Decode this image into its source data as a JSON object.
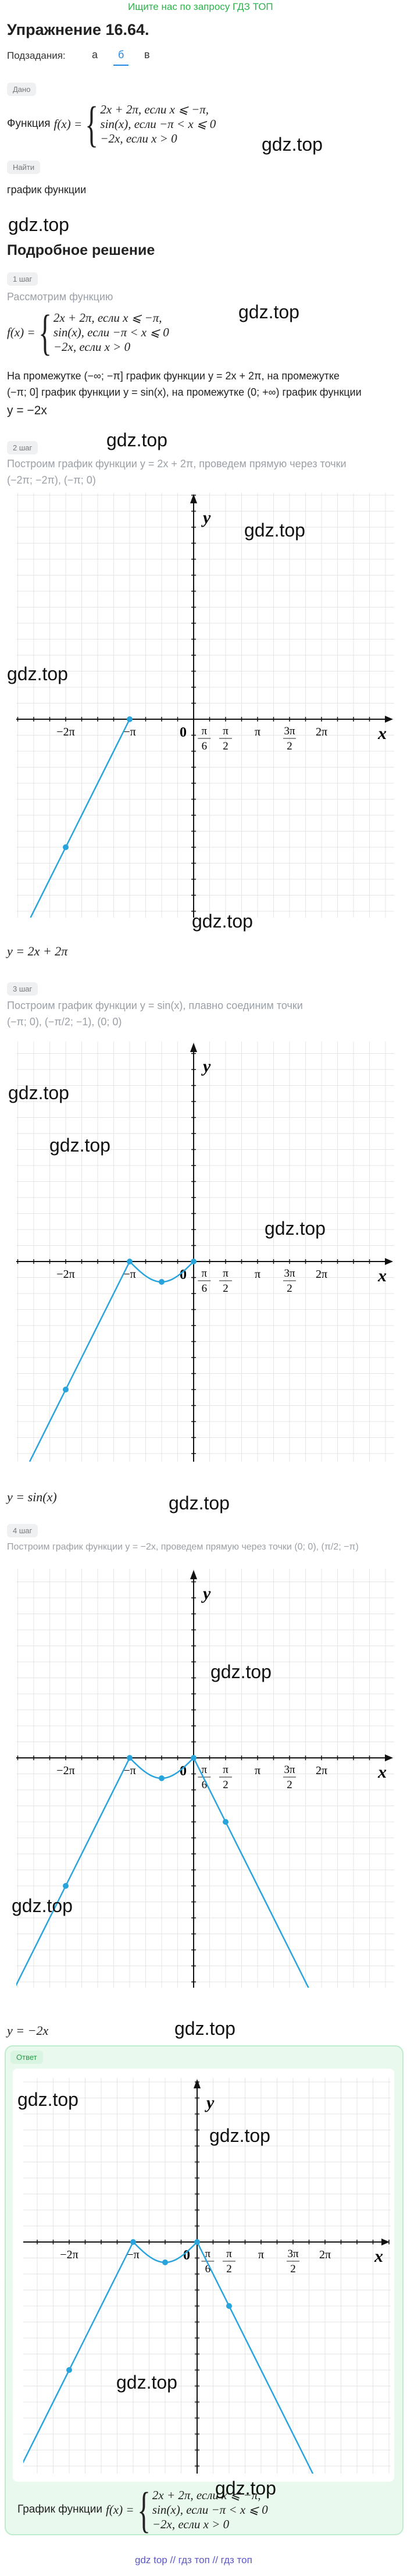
{
  "top_link": "Ищите нас по запросу ГДЗ ТОП",
  "title": "Упражнение 16.64.",
  "subtasks": {
    "label": "Подзадания:",
    "items": [
      "а",
      "б",
      "в"
    ]
  },
  "given": {
    "label": "Дано",
    "prefix": "Функция",
    "func": "f(x) =",
    "cases": [
      "2x + 2π, если x ⩽ −π,",
      "sin(x), если −π < x ⩽ 0",
      "−2x, если x > 0"
    ]
  },
  "find": {
    "label": "Найти",
    "text": "график функции"
  },
  "solution_title": "Подробное решение",
  "step1": {
    "label": "1 шаг",
    "intro": "Рассмотрим функцию",
    "func": "f(x) =",
    "cases": [
      "2x + 2π, если x ⩽ −π,",
      "sin(x), если −π < x ⩽ 0",
      "−2x, если x > 0"
    ],
    "lines": [
      "На промежутке (−∞; −π] график функции y = 2x + 2π, на промежутке",
      "(−π; 0] график функции y = sin(x), на промежутке (0; +∞) график функции",
      "y = −2x"
    ]
  },
  "steps": [
    {
      "label": "2 шаг",
      "lines": [
        "Построим график функции y = 2x + 2π, проведем прямую через точки",
        "(−2π; −2π), (−π; 0)"
      ],
      "result": "y = 2x + 2π"
    },
    {
      "label": "3 шаг",
      "lines": [
        "Построим график функции y = sin(x), плавно соединим точки",
        "(−π; 0), (−π/2; −1), (0; 0)"
      ],
      "result": "y = sin(x)"
    },
    {
      "label": "4 шаг",
      "lines": [
        "Построим график функции y = −2x, проведем прямую через точки (0; 0), (π/2; −π)"
      ],
      "result": "y = −2x"
    }
  ],
  "graph": {
    "y": "y",
    "x": "x",
    "origin": "0",
    "ticks": [
      "−2π",
      "−π",
      {
        "num": "π",
        "den": "6"
      },
      {
        "num": "π",
        "den": "2"
      },
      "π",
      {
        "num": "3π",
        "den": "2"
      },
      "2π"
    ]
  },
  "answer": {
    "label": "Ответ",
    "prefix": "График функции",
    "func": "f(x) =",
    "cases": [
      "2x + 2π, если x ⩽ −π,",
      "sin(x), если −π < x ⩽ 0",
      "−2x, если x > 0"
    ]
  },
  "footer": "gdz top // гдз топ // гдз топ",
  "watermarks": [
    "gdz.top",
    "gdz.top",
    "gdz.top",
    "gdz.top",
    "gdz.top",
    "gdz.top",
    "gdz.top",
    "gdz.top",
    "gdz.top",
    "gdz.top",
    "gdz.top",
    "gdz.top",
    "gdz.top",
    "gdz.top",
    "gdz.top",
    "gdz.top",
    "gdz.top",
    "gdz.top"
  ]
}
